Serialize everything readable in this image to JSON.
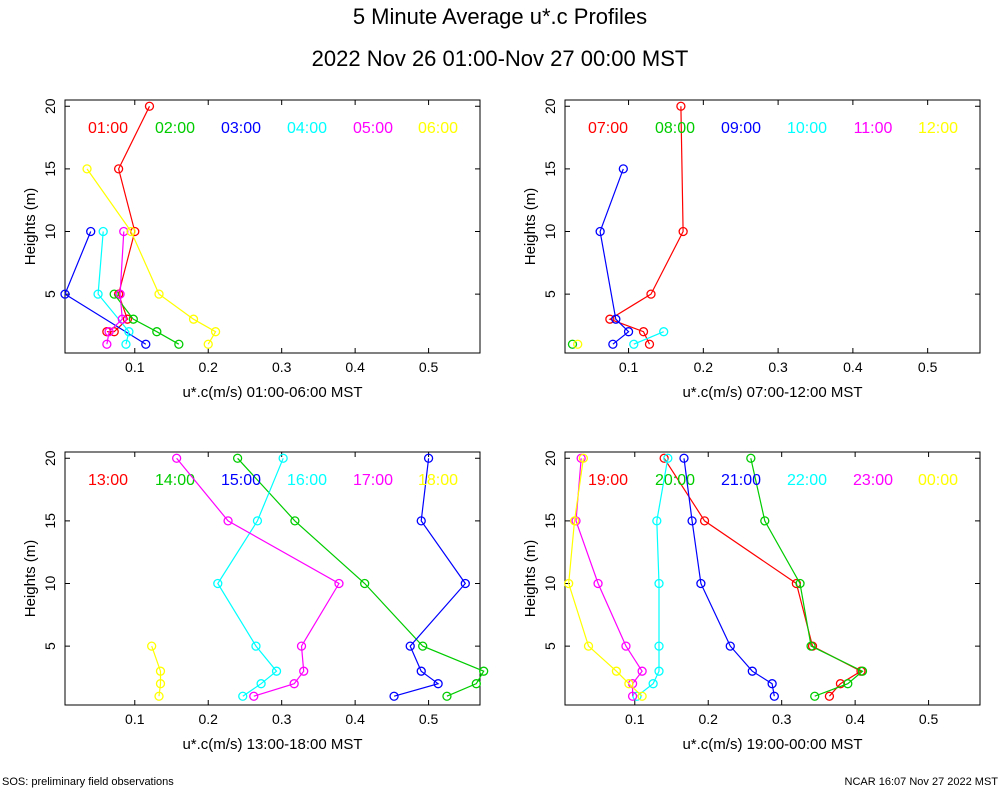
{
  "title": "5 Minute Average u*.c Profiles",
  "subtitle": "2022 Nov 26 01:00-Nov 27 00:00 MST",
  "footer_left": "SOS: preliminary field observations",
  "footer_right": "NCAR 16:07 Nov 27 2022 MST",
  "series_colors": [
    "#ff0000",
    "#00cc00",
    "#0000ff",
    "#00ffff",
    "#ff00ff",
    "#ffff00"
  ],
  "chart_data": [
    {
      "type": "scatter",
      "xlabel": "u*.c(m/s) 01:00-06:00 MST",
      "ylabel": "Heights (m)",
      "xlim": [
        0.005,
        0.57
      ],
      "ylim": [
        0.3,
        20.5
      ],
      "xticks": [
        0.1,
        0.2,
        0.3,
        0.4,
        0.5
      ],
      "xtick_labels": [
        "0.1",
        "0.2",
        "0.3",
        "0.4",
        "0.5"
      ],
      "yticks": [
        5,
        10,
        15,
        20
      ],
      "ytick_labels": [
        "5",
        "10",
        "15",
        "20"
      ],
      "series": [
        {
          "name": "01:00",
          "points": [
            [
              0.12,
              20
            ],
            [
              0.078,
              15
            ],
            [
              0.1,
              10
            ],
            [
              0.078,
              5
            ],
            [
              0.09,
              3
            ],
            [
              0.072,
              2
            ],
            [
              0.062,
              2
            ]
          ]
        },
        {
          "name": "02:00",
          "points": [
            [
              0.072,
              5
            ],
            [
              0.098,
              3
            ],
            [
              0.13,
              2
            ],
            [
              0.16,
              1
            ]
          ]
        },
        {
          "name": "03:00",
          "points": [
            [
              0.04,
              10
            ],
            [
              0.005,
              5
            ],
            [
              0.115,
              1
            ]
          ]
        },
        {
          "name": "04:00",
          "points": [
            [
              0.057,
              10
            ],
            [
              0.05,
              5
            ],
            [
              0.092,
              2
            ],
            [
              0.088,
              1
            ]
          ]
        },
        {
          "name": "05:00",
          "points": [
            [
              0.085,
              10
            ],
            [
              0.08,
              5
            ],
            [
              0.083,
              3
            ],
            [
              0.065,
              2
            ],
            [
              0.062,
              1
            ]
          ]
        },
        {
          "name": "06:00",
          "points": [
            [
              0.035,
              15
            ],
            [
              0.095,
              10
            ],
            [
              0.133,
              5
            ],
            [
              0.18,
              3
            ],
            [
              0.21,
              2
            ],
            [
              0.2,
              1
            ]
          ]
        }
      ]
    },
    {
      "type": "scatter",
      "xlabel": "u*.c(m/s) 07:00-12:00 MST",
      "ylabel": "Heights (m)",
      "xlim": [
        0.015,
        0.57
      ],
      "ylim": [
        0.3,
        20.5
      ],
      "xticks": [
        0.1,
        0.2,
        0.3,
        0.4,
        0.5
      ],
      "xtick_labels": [
        "0.1",
        "0.2",
        "0.3",
        "0.4",
        "0.5"
      ],
      "yticks": [
        5,
        10,
        15,
        20
      ],
      "ytick_labels": [
        "5",
        "10",
        "15",
        "20"
      ],
      "series": [
        {
          "name": "07:00",
          "points": [
            [
              0.17,
              20
            ],
            [
              0.173,
              10
            ],
            [
              0.13,
              5
            ],
            [
              0.075,
              3
            ],
            [
              0.12,
              2
            ],
            [
              0.128,
              1
            ]
          ]
        },
        {
          "name": "08:00",
          "points": [
            [
              0.025,
              1
            ]
          ]
        },
        {
          "name": "09:00",
          "points": [
            [
              0.093,
              15
            ],
            [
              0.062,
              10
            ],
            [
              0.083,
              3
            ],
            [
              0.1,
              2
            ],
            [
              0.079,
              1
            ]
          ]
        },
        {
          "name": "10:00",
          "points": [
            [
              0.147,
              2
            ],
            [
              0.107,
              1
            ]
          ]
        },
        {
          "name": "11:00",
          "points": []
        },
        {
          "name": "12:00",
          "points": [
            [
              0.032,
              1
            ]
          ]
        }
      ]
    },
    {
      "type": "scatter",
      "xlabel": "u*.c(m/s) 13:00-18:00 MST",
      "ylabel": "Heights (m)",
      "xlim": [
        0.005,
        0.57
      ],
      "ylim": [
        0.3,
        20.5
      ],
      "xticks": [
        0.1,
        0.2,
        0.3,
        0.4,
        0.5
      ],
      "xtick_labels": [
        "0.1",
        "0.2",
        "0.3",
        "0.4",
        "0.5"
      ],
      "yticks": [
        5,
        10,
        15,
        20
      ],
      "ytick_labels": [
        "5",
        "10",
        "15",
        "20"
      ],
      "series": [
        {
          "name": "13:00",
          "points": []
        },
        {
          "name": "14:00",
          "points": [
            [
              0.24,
              20
            ],
            [
              0.318,
              15
            ],
            [
              0.413,
              10
            ],
            [
              0.492,
              5
            ],
            [
              0.575,
              3
            ],
            [
              0.565,
              2
            ],
            [
              0.525,
              1
            ]
          ]
        },
        {
          "name": "15:00",
          "points": [
            [
              0.5,
              20
            ],
            [
              0.49,
              15
            ],
            [
              0.55,
              10
            ],
            [
              0.475,
              5
            ],
            [
              0.49,
              3
            ],
            [
              0.513,
              2
            ],
            [
              0.453,
              1
            ]
          ]
        },
        {
          "name": "16:00",
          "points": [
            [
              0.302,
              20
            ],
            [
              0.267,
              15
            ],
            [
              0.213,
              10
            ],
            [
              0.265,
              5
            ],
            [
              0.293,
              3
            ],
            [
              0.272,
              2
            ],
            [
              0.247,
              1
            ]
          ]
        },
        {
          "name": "17:00",
          "points": [
            [
              0.157,
              20
            ],
            [
              0.227,
              15
            ],
            [
              0.378,
              10
            ],
            [
              0.327,
              5
            ],
            [
              0.33,
              3
            ],
            [
              0.317,
              2
            ],
            [
              0.262,
              1
            ]
          ]
        },
        {
          "name": "18:00",
          "points": [
            [
              0.123,
              5
            ],
            [
              0.135,
              3
            ],
            [
              0.135,
              2
            ],
            [
              0.133,
              1
            ]
          ]
        }
      ]
    },
    {
      "type": "scatter",
      "xlabel": "u*.c(m/s) 19:00-00:00 MST",
      "ylabel": "Heights (m)",
      "xlim": [
        0.005,
        0.57
      ],
      "ylim": [
        0.3,
        20.5
      ],
      "xticks": [
        0.1,
        0.2,
        0.3,
        0.4,
        0.5
      ],
      "xtick_labels": [
        "0.1",
        "0.2",
        "0.3",
        "0.4",
        "0.5"
      ],
      "yticks": [
        5,
        10,
        15,
        20
      ],
      "ytick_labels": [
        "5",
        "10",
        "15",
        "20"
      ],
      "series": [
        {
          "name": "19:00",
          "points": [
            [
              0.14,
              20
            ],
            [
              0.195,
              15
            ],
            [
              0.32,
              10
            ],
            [
              0.342,
              5
            ],
            [
              0.408,
              3
            ],
            [
              0.38,
              2
            ],
            [
              0.365,
              1
            ]
          ]
        },
        {
          "name": "20:00",
          "points": [
            [
              0.258,
              20
            ],
            [
              0.277,
              15
            ],
            [
              0.325,
              10
            ],
            [
              0.34,
              5
            ],
            [
              0.41,
              3
            ],
            [
              0.39,
              2
            ],
            [
              0.345,
              1
            ]
          ]
        },
        {
          "name": "21:00",
          "points": [
            [
              0.167,
              20
            ],
            [
              0.178,
              15
            ],
            [
              0.19,
              10
            ],
            [
              0.23,
              5
            ],
            [
              0.26,
              3
            ],
            [
              0.287,
              2
            ],
            [
              0.29,
              1
            ]
          ]
        },
        {
          "name": "22:00",
          "points": [
            [
              0.145,
              20
            ],
            [
              0.13,
              15
            ],
            [
              0.133,
              10
            ],
            [
              0.133,
              5
            ],
            [
              0.133,
              3
            ],
            [
              0.125,
              2
            ],
            [
              0.103,
              1
            ]
          ]
        },
        {
          "name": "23:00",
          "points": [
            [
              0.027,
              20
            ],
            [
              0.02,
              15
            ],
            [
              0.05,
              10
            ],
            [
              0.088,
              5
            ],
            [
              0.11,
              3
            ],
            [
              0.097,
              2
            ],
            [
              0.097,
              1
            ]
          ]
        },
        {
          "name": "00:00",
          "points": [
            [
              0.03,
              20
            ],
            [
              0.018,
              15
            ],
            [
              0.01,
              10
            ],
            [
              0.037,
              5
            ],
            [
              0.075,
              3
            ],
            [
              0.092,
              2
            ],
            [
              0.11,
              1
            ]
          ]
        }
      ]
    }
  ]
}
